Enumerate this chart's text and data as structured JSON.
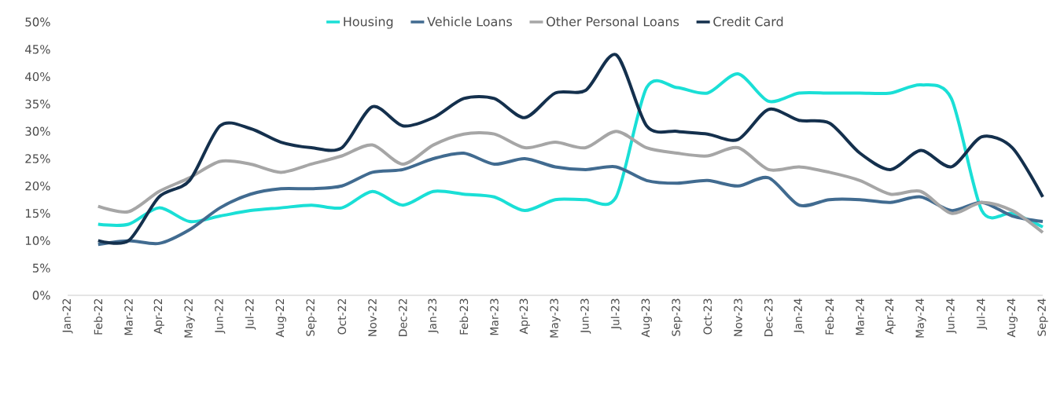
{
  "chart_data": {
    "type": "line",
    "categories": [
      "Jan-22",
      "Feb-22",
      "Mar-22",
      "Apr-22",
      "May-22",
      "Jun-22",
      "Jul-22",
      "Aug-22",
      "Sep-22",
      "Oct-22",
      "Nov-22",
      "Dec-22",
      "Jan-23",
      "Feb-23",
      "Mar-23",
      "Apr-23",
      "May-23",
      "Jun-23",
      "Jul-23",
      "Aug-23",
      "Sep-23",
      "Oct-23",
      "Nov-23",
      "Dec-23",
      "Jan-24",
      "Feb-24",
      "Mar-24",
      "Apr-24",
      "May-24",
      "Jun-24",
      "Jul-24",
      "Aug-24",
      "Sep-24"
    ],
    "series": [
      {
        "name": "Housing",
        "color": "#1adfd6",
        "values": [
          null,
          13,
          13,
          16,
          13.5,
          14.5,
          15.5,
          16,
          16.5,
          16,
          19,
          16.5,
          19,
          18.5,
          18,
          15.5,
          17.5,
          17.5,
          18,
          38,
          38,
          37,
          40.5,
          35.5,
          37,
          37,
          37,
          37,
          38.5,
          36,
          15.5,
          15,
          12.5
        ]
      },
      {
        "name": "Vehicle Loans",
        "color": "#416b90",
        "values": [
          null,
          9.3,
          10,
          9.5,
          12,
          16,
          18.5,
          19.5,
          19.5,
          20,
          22.5,
          23,
          25,
          26,
          24,
          25,
          23.5,
          23,
          23.5,
          21,
          20.5,
          21,
          20,
          21.5,
          16.5,
          17.5,
          17.5,
          17,
          18,
          15.5,
          17,
          14.5,
          13.5
        ]
      },
      {
        "name": "Other Personal Loans",
        "color": "#a6a6a6",
        "values": [
          null,
          16.3,
          15.3,
          19,
          21.5,
          24.5,
          24,
          22.5,
          24,
          25.5,
          27.5,
          24,
          27.5,
          29.5,
          29.5,
          27,
          28,
          27,
          30,
          27,
          26,
          25.5,
          27,
          23,
          23.5,
          22.5,
          21,
          18.5,
          19,
          15,
          17,
          15.5,
          11.5
        ]
      },
      {
        "name": "Credit Card",
        "color": "#14304d",
        "values": [
          null,
          10,
          10,
          18,
          21,
          31,
          30.5,
          28,
          27,
          27,
          34.5,
          31,
          32.5,
          36,
          36,
          32.5,
          37,
          37.5,
          44,
          31,
          30,
          29.5,
          28.5,
          34,
          32,
          31.5,
          26,
          23,
          26.5,
          23.5,
          29,
          27,
          18
        ]
      }
    ],
    "ylim": [
      0,
      50
    ],
    "yticks": [
      {
        "value": 0,
        "label": "0%"
      },
      {
        "value": 5,
        "label": "5%"
      },
      {
        "value": 10,
        "label": "10%"
      },
      {
        "value": 15,
        "label": "15%"
      },
      {
        "value": 20,
        "label": "20%"
      },
      {
        "value": 25,
        "label": "25%"
      },
      {
        "value": 30,
        "label": "30%"
      },
      {
        "value": 35,
        "label": "35%"
      },
      {
        "value": 40,
        "label": "40%"
      },
      {
        "value": 45,
        "label": "45%"
      },
      {
        "value": 50,
        "label": "50%"
      }
    ],
    "grid": false,
    "legend": "top",
    "marker": "none",
    "line_style": "solid"
  }
}
